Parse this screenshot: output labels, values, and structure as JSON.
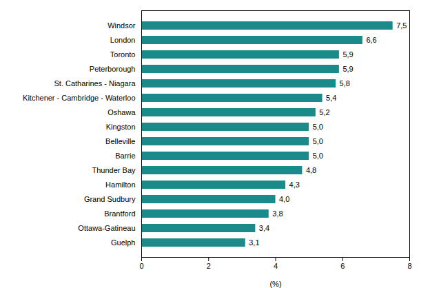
{
  "chart_data": {
    "type": "bar",
    "orientation": "horizontal",
    "categories": [
      "Guelph",
      "Ottawa-Gatineau",
      "Brantford",
      "Grand Sudbury",
      "Hamilton",
      "Thunder Bay",
      "Barrie",
      "Belleville",
      "Kingston",
      "Oshawa",
      "Kitchener - Cambridge - Waterloo",
      "St. Catharines - Niagara",
      "Peterborough",
      "Toronto",
      "London",
      "Windsor"
    ],
    "values": [
      3.1,
      3.4,
      3.8,
      4.0,
      4.3,
      4.8,
      5.0,
      5.0,
      5.0,
      5.2,
      5.4,
      5.8,
      5.9,
      5.9,
      6.6,
      7.5
    ],
    "value_labels": [
      "3,1",
      "3,4",
      "3,8",
      "4,0",
      "4,3",
      "4,8",
      "5,0",
      "5,0",
      "5,0",
      "5,2",
      "5,4",
      "5,8",
      "5,9",
      "5,9",
      "6,6",
      "7,5"
    ],
    "data_labels": true,
    "color": "#1a8a8a",
    "xlabel": "(%)",
    "xlim": [
      0,
      8
    ],
    "xticks": [
      0,
      2,
      4,
      6,
      8
    ],
    "grid": false
  }
}
